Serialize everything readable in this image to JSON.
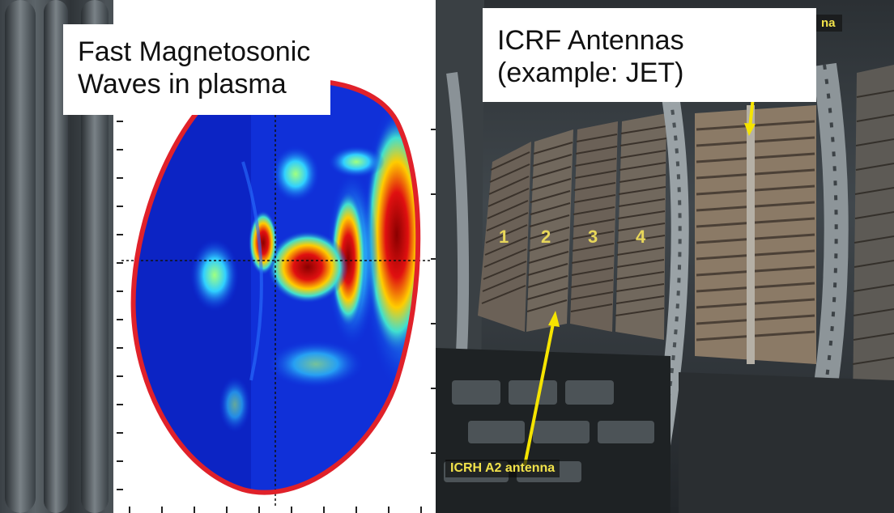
{
  "left_panel": {
    "title": "Fast Magnetosonic\nWaves in plasma"
  },
  "right_panel": {
    "title": "ICRF Antennas\n(example: JET)",
    "antenna_numbers": [
      "1",
      "2",
      "3",
      "4"
    ],
    "arrow_label": "ICRH A2 antenna",
    "corner_label": "na"
  },
  "colors": {
    "label_text": "#f2e24a",
    "arrow": "#f5e400",
    "plasma_boundary": "#e0212a",
    "plot_background": "#ffffff"
  }
}
